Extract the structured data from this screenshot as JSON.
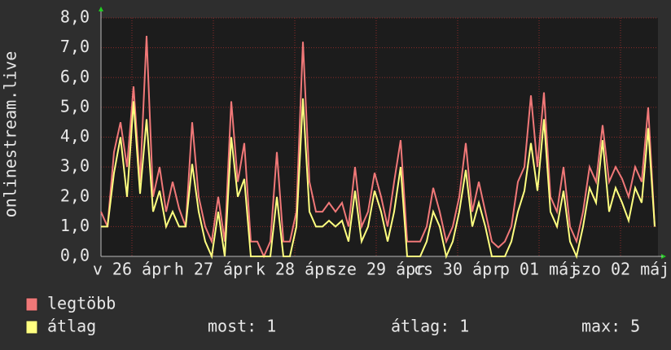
{
  "chart_data": {
    "type": "line",
    "y_label": "onlinestream.live",
    "ylim": [
      0,
      8
    ],
    "yticks": [
      {
        "value": 0,
        "label": "0,0"
      },
      {
        "value": 1,
        "label": "1,0"
      },
      {
        "value": 2,
        "label": "2,0"
      },
      {
        "value": 3,
        "label": "3,0"
      },
      {
        "value": 4,
        "label": "4,0"
      },
      {
        "value": 5,
        "label": "5,0"
      },
      {
        "value": 6,
        "label": "6,0"
      },
      {
        "value": 7,
        "label": "7,0"
      },
      {
        "value": 8,
        "label": "8,0"
      }
    ],
    "xlim": [
      0,
      85.5
    ],
    "xticks": [
      {
        "value": 4.75,
        "label": "v 26 ápr"
      },
      {
        "value": 17.25,
        "label": "h 27 ápr"
      },
      {
        "value": 29.75,
        "label": "k 28 ápr"
      },
      {
        "value": 42.25,
        "label": "sze 29 ápr"
      },
      {
        "value": 54.75,
        "label": "cs 30 ápr"
      },
      {
        "value": 67.25,
        "label": "p 01 máj"
      },
      {
        "value": 79.75,
        "label": "szo 02 máj"
      }
    ],
    "grid": true,
    "series": [
      {
        "name": "legtöbb",
        "color": "#f07878",
        "values": [
          1.5,
          1.0,
          3.5,
          4.5,
          3.0,
          5.7,
          2.5,
          7.4,
          2.0,
          3.0,
          1.5,
          2.5,
          1.6,
          1.0,
          4.5,
          2.0,
          1.0,
          0.5,
          2.0,
          0.5,
          5.2,
          2.5,
          3.8,
          0.5,
          0.5,
          0.0,
          0.5,
          3.5,
          0.5,
          0.5,
          1.5,
          7.2,
          2.5,
          1.5,
          1.5,
          1.8,
          1.5,
          1.8,
          1.0,
          3.0,
          1.0,
          1.5,
          2.8,
          2.0,
          1.0,
          2.5,
          3.9,
          0.5,
          0.5,
          0.5,
          1.0,
          2.3,
          1.5,
          0.5,
          1.0,
          2.0,
          3.8,
          1.5,
          2.5,
          1.5,
          0.5,
          0.3,
          0.5,
          1.0,
          2.5,
          3.0,
          5.4,
          3.0,
          5.5,
          2.0,
          1.5,
          3.0,
          1.0,
          0.5,
          1.5,
          3.0,
          2.5,
          4.4,
          2.5,
          3.0,
          2.6,
          2.0,
          3.0,
          2.5,
          5.0,
          1.0
        ]
      },
      {
        "name": "átlag",
        "color": "#ffff80",
        "values": [
          1.0,
          1.0,
          2.8,
          4.0,
          2.0,
          5.2,
          2.1,
          4.6,
          1.5,
          2.2,
          1.0,
          1.5,
          1.0,
          1.0,
          3.1,
          1.5,
          0.5,
          0.0,
          1.5,
          0.0,
          4.0,
          2.0,
          2.6,
          0.0,
          0.0,
          0.0,
          0.0,
          2.0,
          0.0,
          0.0,
          1.0,
          5.3,
          1.5,
          1.0,
          1.0,
          1.2,
          1.0,
          1.2,
          0.5,
          2.2,
          0.5,
          1.0,
          2.2,
          1.5,
          0.5,
          1.5,
          3.0,
          0.0,
          0.0,
          0.0,
          0.5,
          1.5,
          1.0,
          0.0,
          0.5,
          1.5,
          2.9,
          1.0,
          1.8,
          1.0,
          0.0,
          0.0,
          0.0,
          0.5,
          1.5,
          2.2,
          3.8,
          2.2,
          4.6,
          1.5,
          1.0,
          2.2,
          0.5,
          0.0,
          1.0,
          2.3,
          1.8,
          3.9,
          1.5,
          2.3,
          1.8,
          1.2,
          2.3,
          1.8,
          4.3,
          1.0
        ]
      }
    ],
    "stats": [
      {
        "label": "most:",
        "value": 1
      },
      {
        "label": "átlag:",
        "value": 1
      },
      {
        "label": "max:",
        "value": 5
      }
    ]
  }
}
